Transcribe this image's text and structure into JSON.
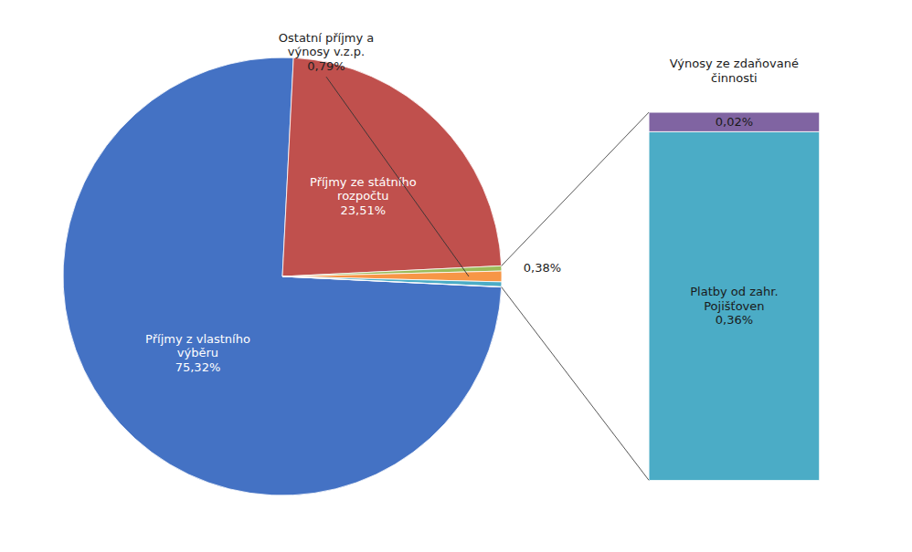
{
  "chart_data": [
    {
      "type": "pie",
      "categories": [
        "Příjmy z vlastního\nvýběru",
        "Příjmy ze státního\nrozpočtu",
        null,
        "Ostatní příjmy a\nvýnosy v.z.p.",
        null,
        null
      ],
      "values": [
        75.32,
        23.51,
        0.38,
        0.79,
        0.36,
        0.02
      ],
      "value_labels": [
        "75,32%",
        "23,51%",
        "0,38%",
        "0,79%",
        null,
        null
      ],
      "colors": [
        "#4472C4",
        "#C0504D",
        "#9BBB59",
        "#F79646",
        "#4BACC6",
        "#8064A2"
      ]
    },
    {
      "type": "bar",
      "title": "Výnosy ze zdaňované\nčinnosti",
      "stacked": true,
      "tick_labels": false,
      "categories": [
        null
      ],
      "ylim": [
        0,
        0.3876
      ],
      "series": [
        {
          "name": "Platby od zahr.\nPojišťoven",
          "color": "#4BACC6",
          "values": [
            0.36
          ],
          "value_labels": [
            "0,36%"
          ]
        },
        {
          "color": "#8064A2",
          "values": [
            0.02
          ],
          "value_labels": [
            "0,02%"
          ]
        }
      ]
    }
  ]
}
